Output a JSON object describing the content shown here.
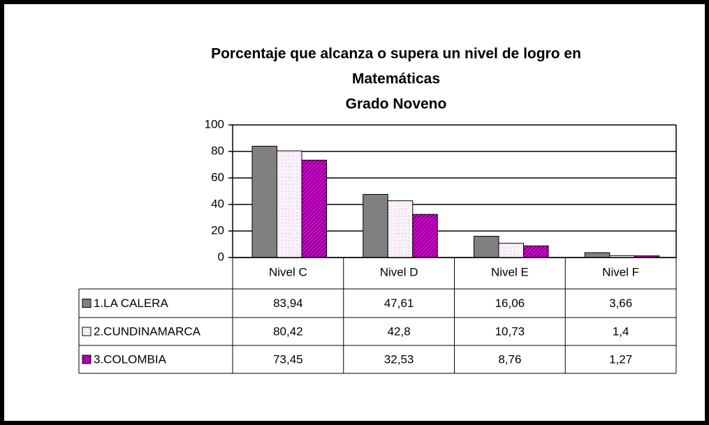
{
  "chart_data": {
    "type": "bar",
    "title": [
      "Porcentaje que alcanza o supera un nivel de logro en",
      "Matemáticas",
      "Grado Noveno"
    ],
    "categories": [
      "Nivel C",
      "Nivel D",
      "Nivel E",
      "Nivel F"
    ],
    "series": [
      {
        "name": "1.LA CALERA",
        "color": "#808080",
        "pattern": "solid",
        "values": [
          83.94,
          47.61,
          16.06,
          3.66
        ],
        "value_labels": [
          "83,94",
          "47,61",
          "16,06",
          "3,66"
        ]
      },
      {
        "name": "2.CUNDINAMARCA",
        "color": "#ffffff",
        "pattern": "dots",
        "values": [
          80.42,
          42.8,
          10.73,
          1.4
        ],
        "value_labels": [
          "80,42",
          "42,8",
          "10,73",
          "1,4"
        ]
      },
      {
        "name": "3.COLOMBIA",
        "color": "#cc00cc",
        "pattern": "hatch",
        "values": [
          73.45,
          32.53,
          8.76,
          1.27
        ],
        "value_labels": [
          "73,45",
          "32,53",
          "8,76",
          "1,27"
        ]
      }
    ],
    "ylim": [
      0,
      100
    ],
    "yticks": [
      0,
      20,
      40,
      60,
      80,
      100
    ],
    "grid": true
  }
}
